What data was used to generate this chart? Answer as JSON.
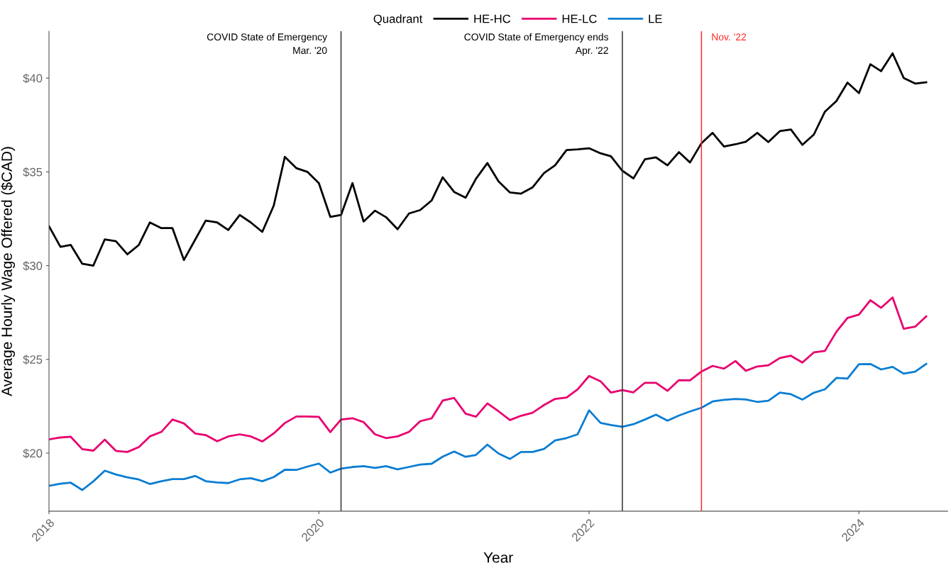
{
  "chart_data": {
    "type": "line",
    "xlabel": "Year",
    "ylabel": "Average Hourly Wage Offered ($CAD)",
    "legend_title": "Quadrant",
    "legend": "top",
    "grid": false,
    "line_style": "solid",
    "marker": "none",
    "x": [
      "2018-01",
      "2018-02",
      "2018-03",
      "2018-04",
      "2018-05",
      "2018-06",
      "2018-07",
      "2018-08",
      "2018-09",
      "2018-10",
      "2018-11",
      "2018-12",
      "2019-01",
      "2019-02",
      "2019-03",
      "2019-04",
      "2019-05",
      "2019-06",
      "2019-07",
      "2019-08",
      "2019-09",
      "2019-10",
      "2019-11",
      "2019-12",
      "2020-01",
      "2020-02",
      "2020-03",
      "2020-04",
      "2020-05",
      "2020-06",
      "2020-07",
      "2020-08",
      "2020-09",
      "2020-10",
      "2020-11",
      "2020-12",
      "2021-01",
      "2021-02",
      "2021-03",
      "2021-04",
      "2021-05",
      "2021-06",
      "2021-07",
      "2021-08",
      "2021-09",
      "2021-10",
      "2021-11",
      "2021-12",
      "2022-01",
      "2022-02",
      "2022-03",
      "2022-04",
      "2022-05",
      "2022-06",
      "2022-07",
      "2022-08",
      "2022-09",
      "2022-10",
      "2022-11",
      "2022-12",
      "2023-01",
      "2023-02",
      "2023-03",
      "2023-04",
      "2023-05",
      "2023-06",
      "2023-07",
      "2023-08",
      "2023-09",
      "2023-10",
      "2023-11",
      "2023-12",
      "2024-01",
      "2024-02",
      "2024-03",
      "2024-04",
      "2024-05",
      "2024-06",
      "2024-07"
    ],
    "series": [
      {
        "name": "HE-HC",
        "color": "#000000",
        "values": [
          32.1,
          31.0,
          31.1,
          30.1,
          30.0,
          31.4,
          31.3,
          30.6,
          31.1,
          32.3,
          32.0,
          32.0,
          30.3,
          31.4,
          32.4,
          32.3,
          31.9,
          32.7,
          32.3,
          31.8,
          33.2,
          35.8,
          35.2,
          35.0,
          34.4,
          32.6,
          32.7,
          34.4,
          32.35,
          32.93,
          32.58,
          31.94,
          32.78,
          32.96,
          33.47,
          34.71,
          33.93,
          33.62,
          34.63,
          35.47,
          34.49,
          33.9,
          33.84,
          34.17,
          34.93,
          35.35,
          36.16,
          36.2,
          36.26,
          35.99,
          35.83,
          35.06,
          34.65,
          35.67,
          35.77,
          35.35,
          36.05,
          35.5,
          36.53,
          37.08,
          36.35,
          36.47,
          36.61,
          37.08,
          36.59,
          37.17,
          37.26,
          36.44,
          36.99,
          38.21,
          38.78,
          39.76,
          39.2,
          40.74,
          40.37,
          41.32,
          40.01,
          39.71,
          39.78
        ]
      },
      {
        "name": "HE-LC",
        "color": "#e8006e",
        "values": [
          20.73,
          20.83,
          20.87,
          20.21,
          20.13,
          20.72,
          20.12,
          20.06,
          20.32,
          20.89,
          21.13,
          21.79,
          21.58,
          21.04,
          20.96,
          20.63,
          20.89,
          21.0,
          20.89,
          20.62,
          21.05,
          21.6,
          21.95,
          21.95,
          21.93,
          21.12,
          21.79,
          21.86,
          21.65,
          21.0,
          20.8,
          20.89,
          21.13,
          21.7,
          21.85,
          22.8,
          22.94,
          22.1,
          21.94,
          22.65,
          22.23,
          21.76,
          21.99,
          22.15,
          22.56,
          22.89,
          22.96,
          23.4,
          24.11,
          23.83,
          23.23,
          23.36,
          23.24,
          23.75,
          23.75,
          23.32,
          23.89,
          23.88,
          24.35,
          24.65,
          24.5,
          24.91,
          24.39,
          24.62,
          24.68,
          25.07,
          25.19,
          24.83,
          25.37,
          25.45,
          26.47,
          27.21,
          27.39,
          28.15,
          27.75,
          28.3,
          26.63,
          26.74,
          27.29
        ]
      },
      {
        "name": "LE",
        "color": "#0a7dd2",
        "values": [
          18.25,
          18.37,
          18.42,
          18.03,
          18.49,
          19.06,
          18.86,
          18.71,
          18.59,
          18.35,
          18.5,
          18.61,
          18.61,
          18.78,
          18.5,
          18.43,
          18.4,
          18.6,
          18.66,
          18.5,
          18.72,
          19.11,
          19.1,
          19.28,
          19.44,
          18.96,
          19.17,
          19.26,
          19.3,
          19.21,
          19.3,
          19.13,
          19.26,
          19.39,
          19.43,
          19.81,
          20.08,
          19.8,
          19.9,
          20.45,
          19.98,
          19.69,
          20.06,
          20.06,
          20.22,
          20.67,
          20.8,
          21.0,
          22.28,
          21.61,
          21.5,
          21.4,
          21.54,
          21.79,
          22.05,
          21.73,
          22.0,
          22.22,
          22.42,
          22.75,
          22.84,
          22.89,
          22.86,
          22.73,
          22.79,
          23.23,
          23.14,
          22.85,
          23.22,
          23.4,
          24.01,
          23.97,
          24.74,
          24.75,
          24.46,
          24.6,
          24.24,
          24.34,
          24.76
        ]
      }
    ],
    "xlim": [
      "2018-01-01",
      "2024-08-28"
    ],
    "xticks": [
      "2018",
      "2020",
      "2022",
      "2024"
    ],
    "ylim": [
      16.9,
      42.5
    ],
    "yticks": [
      {
        "value": 20,
        "label": "$20"
      },
      {
        "value": 25,
        "label": "$25"
      },
      {
        "value": 30,
        "label": "$30"
      },
      {
        "value": 35,
        "label": "$35"
      },
      {
        "value": 40,
        "label": "$40"
      }
    ],
    "ref_lines": [
      {
        "axis": "x",
        "value": "2020-03",
        "label": "COVID State of Emergency\nMar. '20",
        "color": "#333333"
      },
      {
        "axis": "x",
        "value": "2022-04",
        "label": "COVID State of Emergency ends\nApr. '22",
        "color": "#333333"
      },
      {
        "axis": "x",
        "value": "2022-11",
        "label": "Nov. '22",
        "color": "#ff2a2a"
      }
    ]
  }
}
